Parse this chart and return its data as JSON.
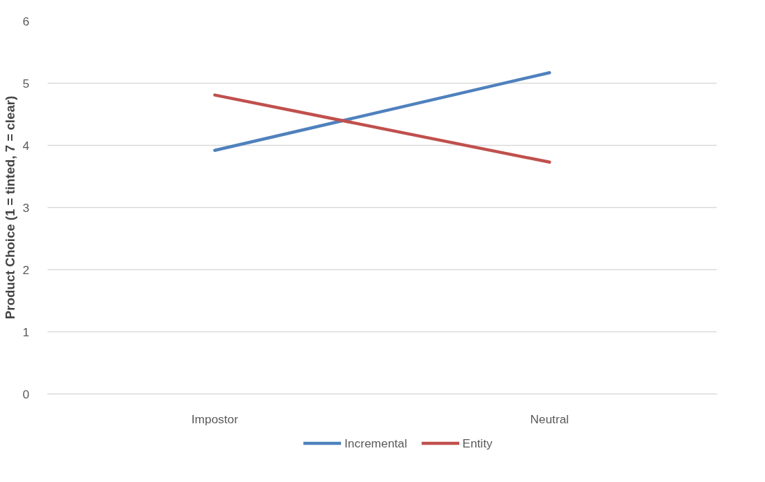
{
  "chart_data": {
    "type": "line",
    "ylabel": "Product Choice (1 = tinted, 7 = clear)",
    "categories": [
      "Impostor",
      "Neutral"
    ],
    "series": [
      {
        "name": "Incremental",
        "color": "#4f81bd",
        "values": [
          3.92,
          5.17
        ]
      },
      {
        "name": "Entity",
        "color": "#c0504d",
        "values": [
          4.81,
          3.73
        ]
      }
    ],
    "ylim": [
      0,
      6
    ],
    "yticks": [
      0,
      1,
      2,
      3,
      4,
      5,
      6
    ],
    "grid": "y",
    "legend": "bottom",
    "marker": "none",
    "line_style": "solid"
  }
}
